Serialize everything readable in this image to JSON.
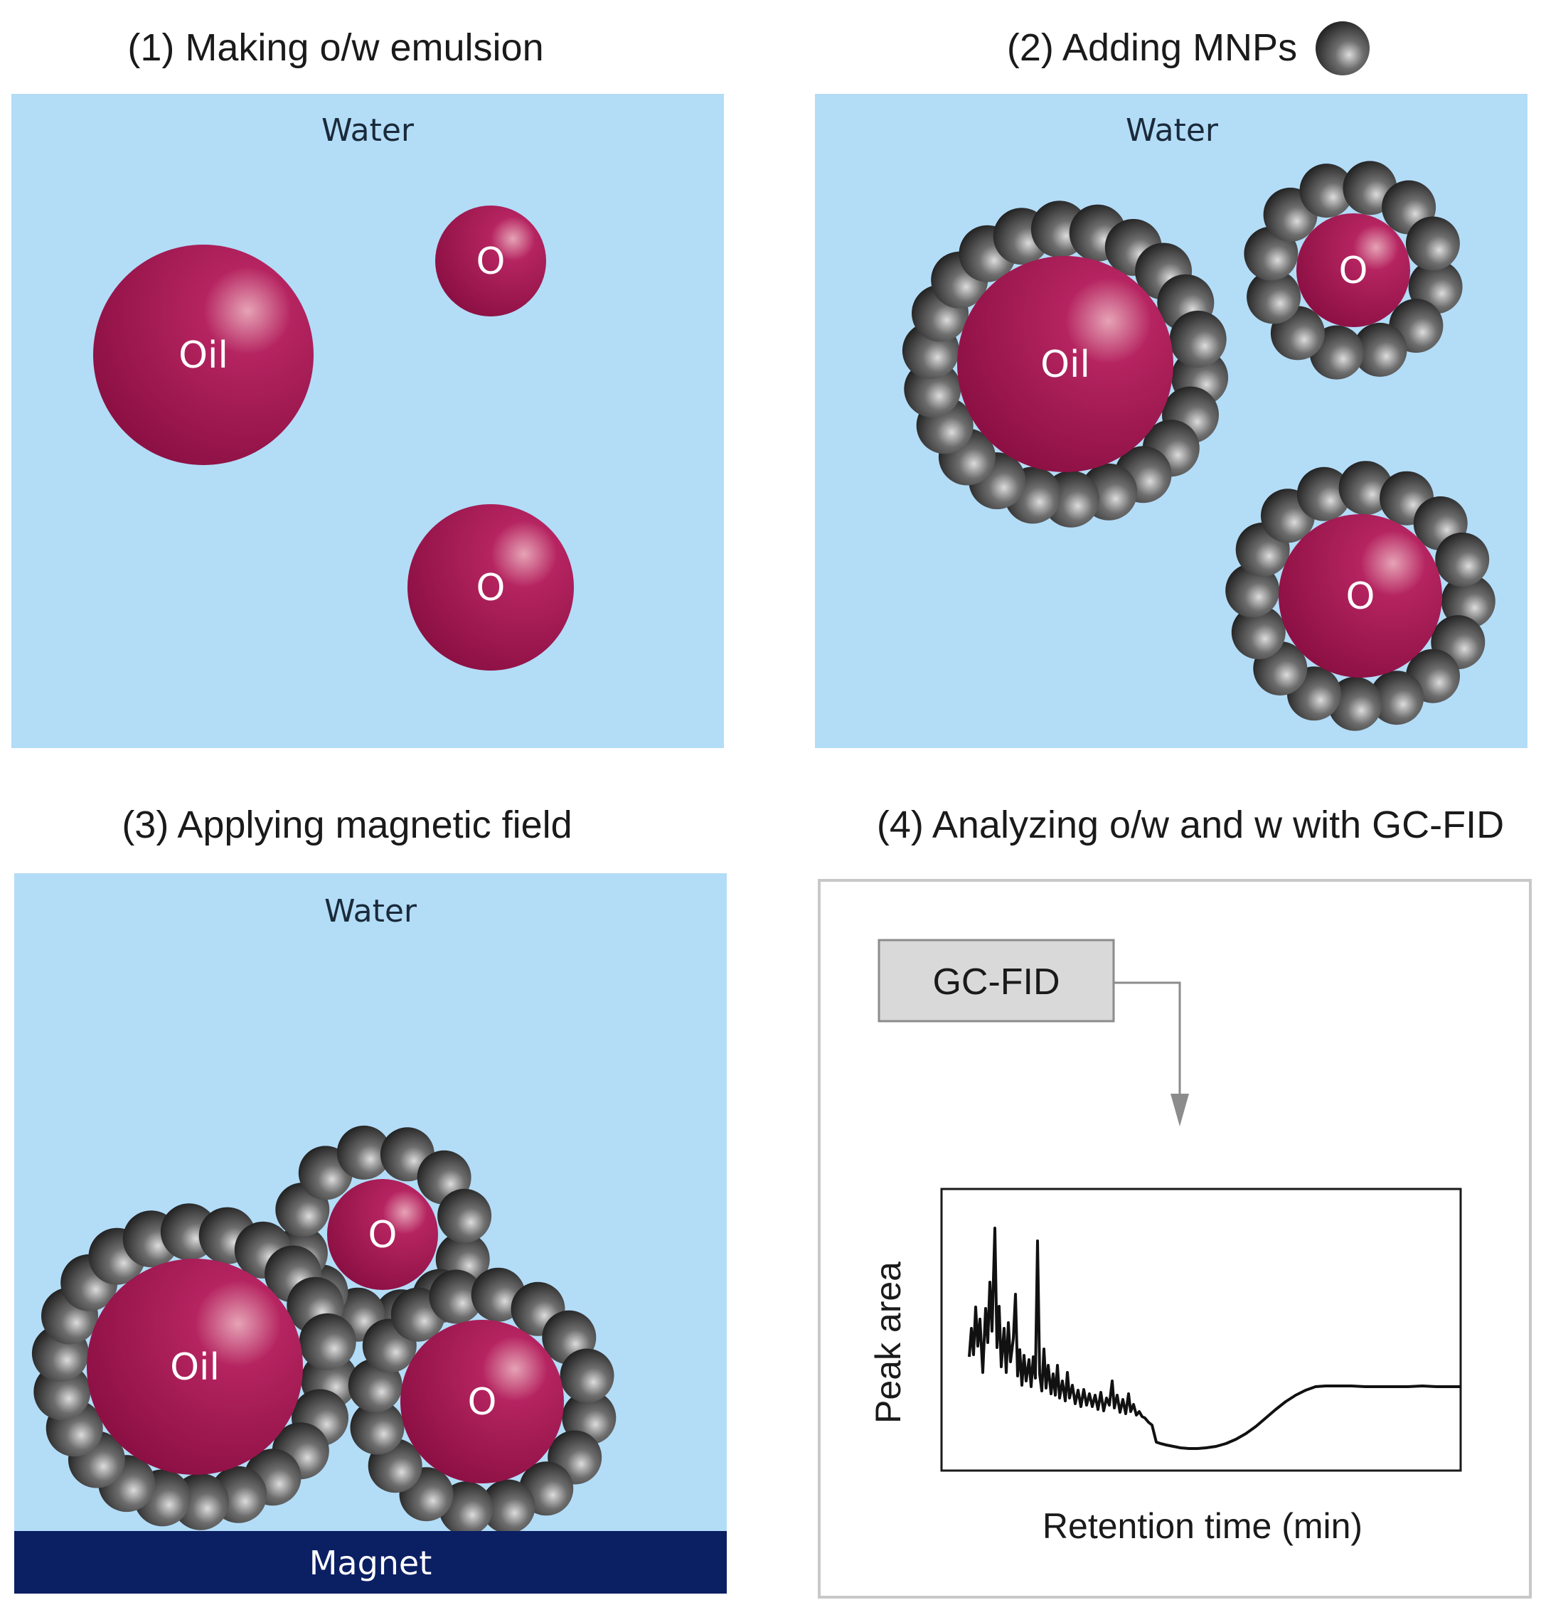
{
  "panels": {
    "p1": {
      "title": "(1) Making o/w emulsion",
      "water": "Water"
    },
    "p2": {
      "title": "(2) Adding MNPs",
      "water": "Water"
    },
    "p3": {
      "title": "(3) Applying magnetic field",
      "water": "Water",
      "magnet": "Magnet"
    },
    "p4": {
      "title": "(4) Analyzing o/w and w with GC-FID",
      "instrument": "GC-FID"
    }
  },
  "droplets": {
    "big": "Oil",
    "small": "O"
  },
  "chromatogram": {
    "ylabel": "Peak area",
    "xlabel": "Retention time (min)"
  },
  "colors": {
    "water": "#b3dcf7",
    "oil": "#a8174f",
    "magnet": "#0b1f63",
    "nanoparticle": "#2a2a2a",
    "instrument_box": "#d9d9d9"
  }
}
